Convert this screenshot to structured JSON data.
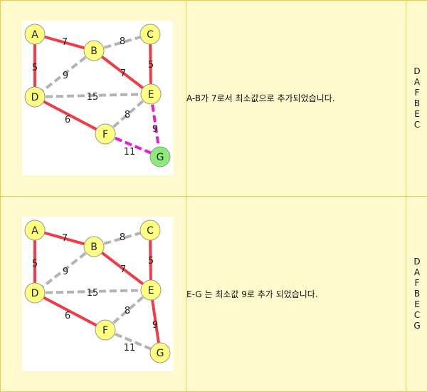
{
  "steps": [
    {
      "description": "A-B가 7로서 최소값으로 추가되었습니다.",
      "order": [
        "D",
        "A",
        "F",
        "B",
        "E",
        "C"
      ],
      "edges": [
        {
          "from": "A",
          "to": "B",
          "weight": "7",
          "state": "selected"
        },
        {
          "from": "A",
          "to": "D",
          "weight": "5",
          "state": "selected"
        },
        {
          "from": "B",
          "to": "C",
          "weight": "8",
          "state": "unselected"
        },
        {
          "from": "B",
          "to": "D",
          "weight": "9",
          "state": "unselected"
        },
        {
          "from": "B",
          "to": "E",
          "weight": "7",
          "state": "selected"
        },
        {
          "from": "C",
          "to": "E",
          "weight": "5",
          "state": "selected"
        },
        {
          "from": "D",
          "to": "E",
          "weight": "15",
          "state": "unselected"
        },
        {
          "from": "D",
          "to": "F",
          "weight": "6",
          "state": "selected"
        },
        {
          "from": "E",
          "to": "F",
          "weight": "8",
          "state": "unselected"
        },
        {
          "from": "E",
          "to": "G",
          "weight": "9",
          "state": "candidate"
        },
        {
          "from": "F",
          "to": "G",
          "weight": "11",
          "state": "candidate"
        }
      ],
      "highlight_nodes": [
        "G"
      ]
    },
    {
      "description": "E-G 는 최소값 9로 추가 되었습니다.",
      "order": [
        "D",
        "A",
        "F",
        "B",
        "E",
        "C",
        "G"
      ],
      "edges": [
        {
          "from": "A",
          "to": "B",
          "weight": "7",
          "state": "selected"
        },
        {
          "from": "A",
          "to": "D",
          "weight": "5",
          "state": "selected"
        },
        {
          "from": "B",
          "to": "C",
          "weight": "8",
          "state": "unselected"
        },
        {
          "from": "B",
          "to": "D",
          "weight": "9",
          "state": "unselected"
        },
        {
          "from": "B",
          "to": "E",
          "weight": "7",
          "state": "selected"
        },
        {
          "from": "C",
          "to": "E",
          "weight": "5",
          "state": "selected"
        },
        {
          "from": "D",
          "to": "E",
          "weight": "15",
          "state": "unselected"
        },
        {
          "from": "D",
          "to": "F",
          "weight": "6",
          "state": "selected"
        },
        {
          "from": "E",
          "to": "F",
          "weight": "8",
          "state": "unselected"
        },
        {
          "from": "E",
          "to": "G",
          "weight": "9",
          "state": "selected"
        },
        {
          "from": "F",
          "to": "G",
          "weight": "11",
          "state": "unselected"
        }
      ],
      "highlight_nodes": []
    }
  ],
  "colors": {
    "selected": "#f03c46",
    "unselected": "#b4b4b4",
    "candidate": "#e61ed2",
    "node_fill": "#ffff80",
    "node_highlight": "#8ceb78"
  }
}
